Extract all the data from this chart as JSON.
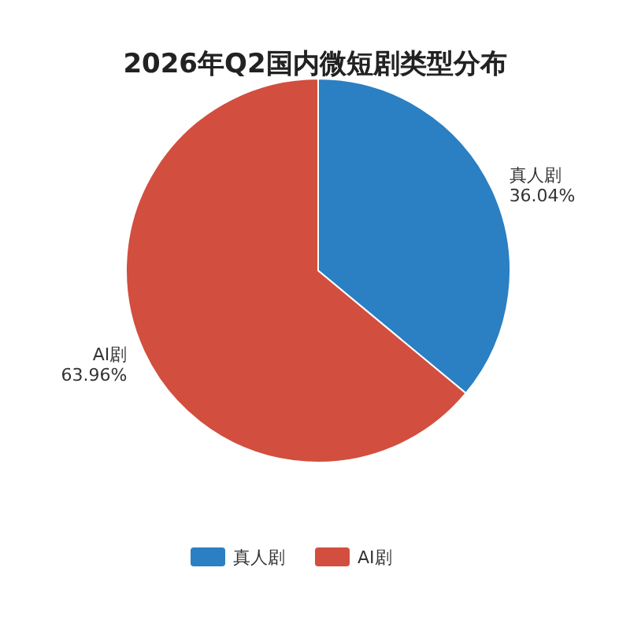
{
  "chart_data": {
    "type": "pie",
    "title": "2026年Q2国内微短剧类型分布",
    "categories": [
      "真人剧",
      "AI剧"
    ],
    "values": [
      36.04,
      63.96
    ],
    "colors": [
      "#2b7fc3",
      "#d24e3e"
    ],
    "value_labels": [
      "36.04%",
      "63.96%"
    ],
    "legend": "bottom"
  }
}
